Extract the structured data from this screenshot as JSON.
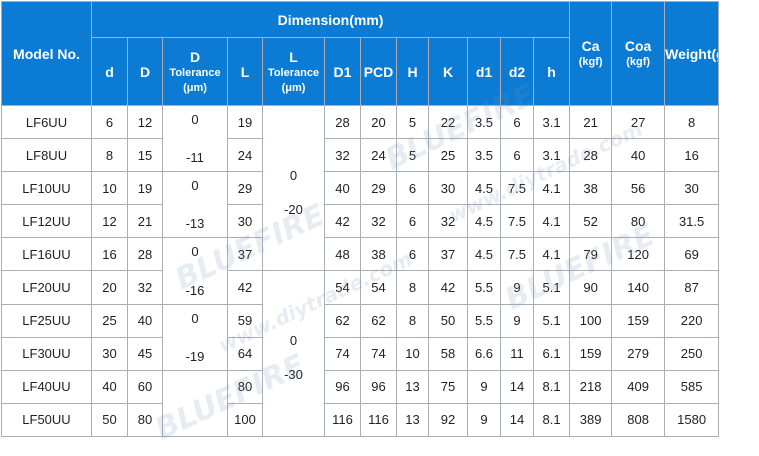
{
  "header": {
    "model": "Model No.",
    "dimension": "Dimension(mm)",
    "cols": {
      "d": "d",
      "D": "D",
      "d_tol_name": "D",
      "tol_label": "Tolerance",
      "tol_unit": "(μm)",
      "L": "L",
      "l_tol_name": "L",
      "D1": "D1",
      "PCD": "PCD",
      "H": "H",
      "K": "K",
      "d1": "d1",
      "d2": "d2",
      "h": "h"
    },
    "ca": "Ca",
    "coa": "Coa",
    "kgf": "(kgf)",
    "weight": "Weight(g)"
  },
  "rows": [
    {
      "model": "LF6UU",
      "d": "6",
      "D": "12",
      "L": "19",
      "D1": "28",
      "PCD": "20",
      "H": "5",
      "K": "22",
      "d1": "3.5",
      "d2": "6",
      "h": "3.1",
      "ca": "21",
      "coa": "27",
      "weight": "8"
    },
    {
      "model": "LF8UU",
      "d": "8",
      "D": "15",
      "L": "24",
      "D1": "32",
      "PCD": "24",
      "H": "5",
      "K": "25",
      "d1": "3.5",
      "d2": "6",
      "h": "3.1",
      "ca": "28",
      "coa": "40",
      "weight": "16"
    },
    {
      "model": "LF10UU",
      "d": "10",
      "D": "19",
      "L": "29",
      "D1": "40",
      "PCD": "29",
      "H": "6",
      "K": "30",
      "d1": "4.5",
      "d2": "7.5",
      "h": "4.1",
      "ca": "38",
      "coa": "56",
      "weight": "30"
    },
    {
      "model": "LF12UU",
      "d": "12",
      "D": "21",
      "L": "30",
      "D1": "42",
      "PCD": "32",
      "H": "6",
      "K": "32",
      "d1": "4.5",
      "d2": "7.5",
      "h": "4.1",
      "ca": "52",
      "coa": "80",
      "weight": "31.5"
    },
    {
      "model": "LF16UU",
      "d": "16",
      "D": "28",
      "L": "37",
      "D1": "48",
      "PCD": "38",
      "H": "6",
      "K": "37",
      "d1": "4.5",
      "d2": "7.5",
      "h": "4.1",
      "ca": "79",
      "coa": "120",
      "weight": "69"
    },
    {
      "model": "LF20UU",
      "d": "20",
      "D": "32",
      "L": "42",
      "D1": "54",
      "PCD": "54",
      "H": "8",
      "K": "42",
      "d1": "5.5",
      "d2": "9",
      "h": "5.1",
      "ca": "90",
      "coa": "140",
      "weight": "87"
    },
    {
      "model": "LF25UU",
      "d": "25",
      "D": "40",
      "L": "59",
      "D1": "62",
      "PCD": "62",
      "H": "8",
      "K": "50",
      "d1": "5.5",
      "d2": "9",
      "h": "5.1",
      "ca": "100",
      "coa": "159",
      "weight": "220"
    },
    {
      "model": "LF30UU",
      "d": "30",
      "D": "45",
      "L": "64",
      "D1": "74",
      "PCD": "74",
      "H": "10",
      "K": "58",
      "d1": "6.6",
      "d2": "11",
      "h": "6.1",
      "ca": "159",
      "coa": "279",
      "weight": "250"
    },
    {
      "model": "LF40UU",
      "d": "40",
      "D": "60",
      "L": "80",
      "D1": "96",
      "PCD": "96",
      "H": "13",
      "K": "75",
      "d1": "9",
      "d2": "14",
      "h": "8.1",
      "ca": "218",
      "coa": "409",
      "weight": "585"
    },
    {
      "model": "LF50UU",
      "d": "50",
      "D": "80",
      "L": "100",
      "D1": "116",
      "PCD": "116",
      "H": "13",
      "K": "92",
      "d1": "9",
      "d2": "14",
      "h": "8.1",
      "ca": "389",
      "coa": "808",
      "weight": "1580"
    }
  ],
  "d_tolerance": [
    {
      "upper": "0",
      "lower": "-11"
    },
    {
      "upper": "0",
      "lower": "-13"
    },
    {
      "upper": "0",
      "lower": "-16"
    },
    {
      "upper": "0",
      "lower": "-19"
    }
  ],
  "l_tolerance": [
    {
      "upper": "0",
      "lower": "-20"
    },
    {
      "upper": "0",
      "lower": "-30"
    }
  ],
  "watermark": {
    "brand": "BLUEFIRE",
    "site": "www.diytrade.com"
  }
}
